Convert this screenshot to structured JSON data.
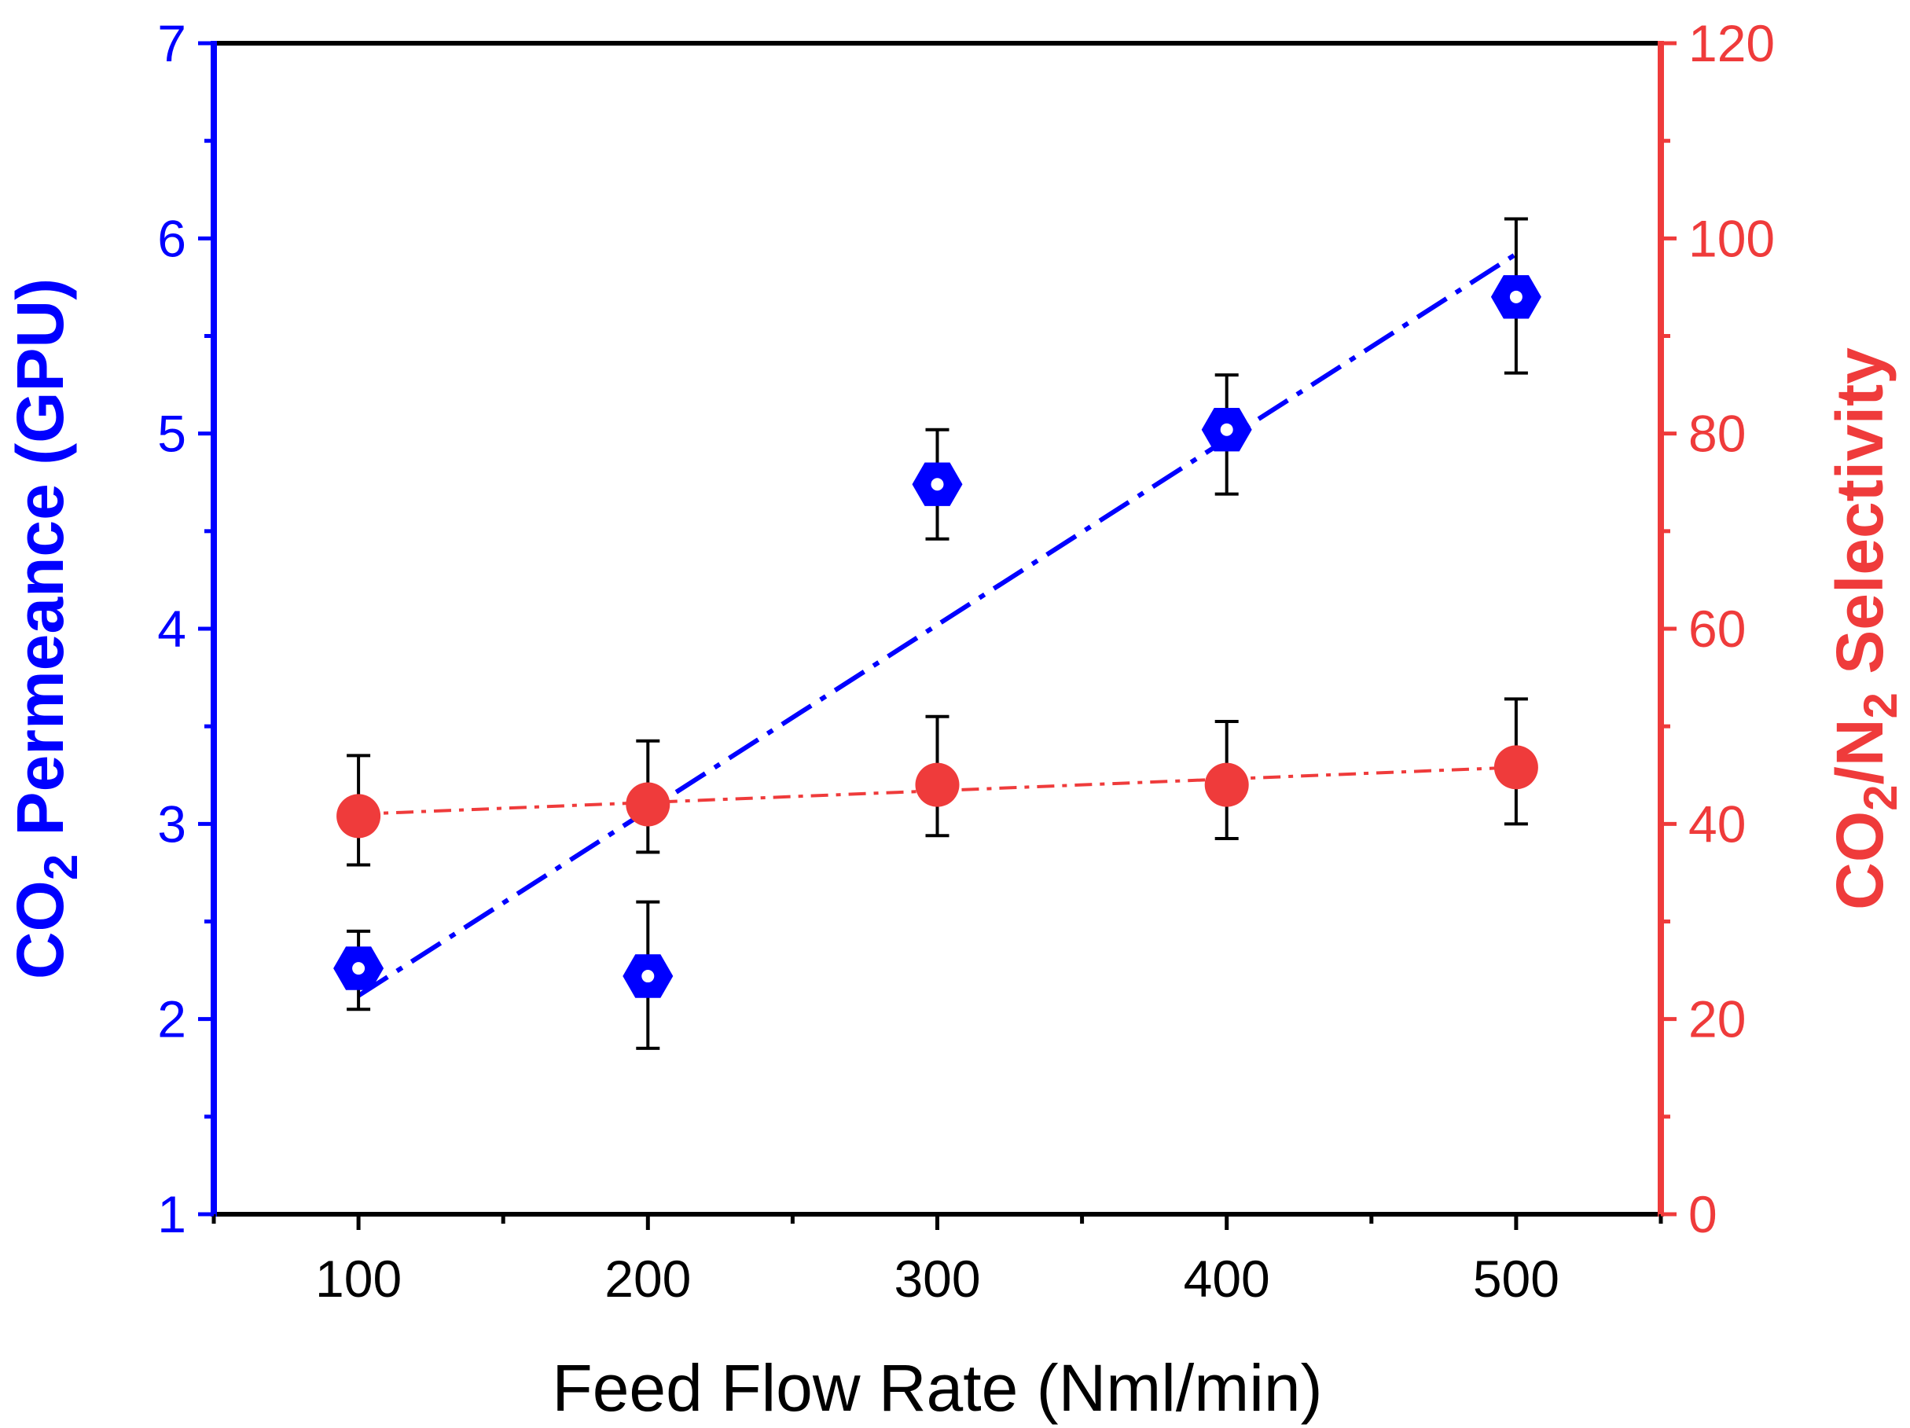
{
  "chart_data": {
    "type": "scatter",
    "x": [
      100,
      200,
      300,
      400,
      500
    ],
    "xlabel": "Feed Flow Rate (Nml/min)",
    "xlim": [
      50,
      550
    ],
    "x_ticks": [
      "100",
      "200",
      "300",
      "400",
      "500"
    ],
    "left_axis": {
      "label_parts": [
        "CO",
        "2",
        " Permeance (GPU)"
      ],
      "ylim": [
        1,
        7
      ],
      "ticks": [
        "1",
        "2",
        "3",
        "4",
        "5",
        "6",
        "7"
      ],
      "color": "#0000ff"
    },
    "right_axis": {
      "label_parts": [
        "CO",
        "2",
        "/N",
        "2",
        " Selectivity"
      ],
      "ylim": [
        0,
        120
      ],
      "ticks": [
        "0",
        "20",
        "40",
        "60",
        "80",
        "100",
        "120"
      ],
      "color": "#ef3b3b"
    },
    "series": [
      {
        "name": "CO2 Permeance",
        "axis": "left",
        "marker": "hexagon",
        "color": "#0000ff",
        "values": [
          2.26,
          2.22,
          4.74,
          5.02,
          5.7
        ],
        "err_high": [
          2.45,
          2.6,
          5.02,
          5.3,
          6.1
        ],
        "err_low": [
          2.05,
          1.85,
          4.46,
          4.69,
          5.31
        ],
        "fit": {
          "x0": 100,
          "y0": 2.12,
          "x1": 500,
          "y1": 5.92
        }
      },
      {
        "name": "CO2/N2 Selectivity",
        "axis": "right",
        "marker": "circle",
        "color": "#ef3b3b",
        "values": [
          40.8,
          42.0,
          44.0,
          44.0,
          45.8
        ],
        "err_high": [
          47.0,
          48.5,
          51.0,
          50.5,
          52.8
        ],
        "err_low": [
          35.8,
          37.1,
          38.8,
          38.5,
          40.0
        ],
        "fit": {
          "x0": 100,
          "y0": 41.0,
          "x1": 500,
          "y1": 45.8
        }
      }
    ]
  }
}
